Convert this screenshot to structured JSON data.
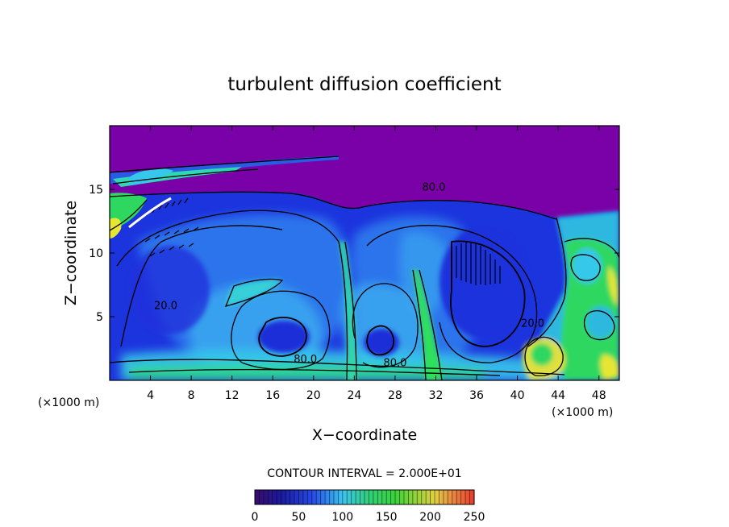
{
  "chart_data": {
    "type": "heatmap",
    "title": "turbulent diffusion coefficient",
    "xlabel": "X−coordinate",
    "ylabel": "Z−coordinate",
    "x_unit_left": "(×1000 m)",
    "x_unit_right": "(×1000 m)",
    "xlim": [
      0,
      50
    ],
    "ylim": [
      0,
      20
    ],
    "xticks": [
      4,
      8,
      12,
      16,
      20,
      24,
      28,
      32,
      36,
      40,
      44,
      48
    ],
    "yticks": [
      5,
      10,
      15
    ],
    "contour_interval_text": "CONTOUR INTERVAL = 2.000E+01",
    "contour_interval": 20,
    "colorbar": {
      "range": [
        0,
        250
      ],
      "ticks": [
        0,
        50,
        100,
        150,
        200,
        250
      ],
      "colormap": "rainbow (violet-blue-cyan-green-yellow-red)"
    },
    "contour_labels": [
      {
        "text": "80.0",
        "x": 31.8,
        "z": 14.9
      },
      {
        "text": "80.0",
        "x": 19.2,
        "z": 1.4
      },
      {
        "text": "80.0",
        "x": 28.0,
        "z": 1.1
      },
      {
        "text": "20.0",
        "x": 5.5,
        "z": 5.6
      },
      {
        "text": "20.0",
        "x": 41.5,
        "z": 4.2
      }
    ],
    "colors": {
      "upper_region": "#7a00a8",
      "deep_blue": "#1a2fe0",
      "light_blue": "#38a8f0",
      "cyan": "#33e0e8",
      "green": "#2ee05a",
      "yellow": "#e6e633",
      "red": "#e23020"
    }
  }
}
